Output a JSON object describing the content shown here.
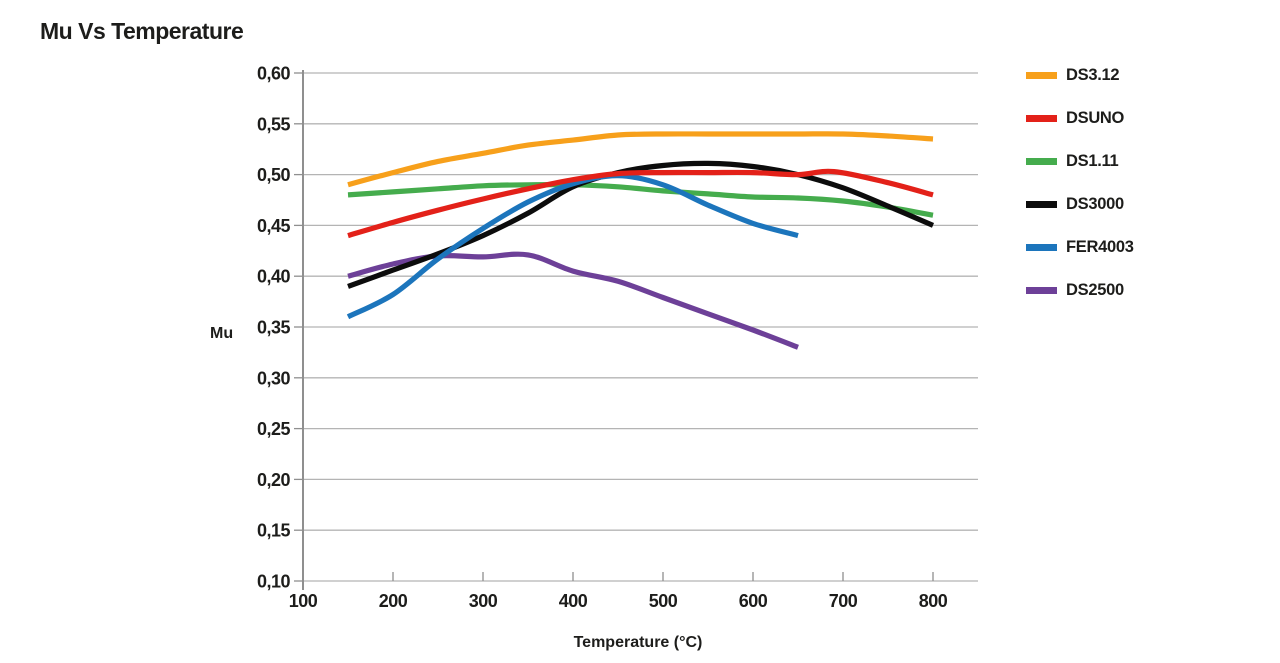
{
  "title": "Mu Vs Temperature",
  "colors": {
    "text": "#1d1d1b",
    "grid": "#b4b4b4",
    "axis": "#8f8f8f",
    "background": "#ffffff"
  },
  "chart_data": {
    "type": "line",
    "title": "Mu Vs Temperature",
    "xlabel": "Temperature (°C)",
    "ylabel": "Mu",
    "xlim": [
      100,
      850
    ],
    "ylim": [
      0.1,
      0.6
    ],
    "grid": "horizontal",
    "legend_position": "right",
    "decimal_separator": ",",
    "x_ticks": [
      100,
      200,
      300,
      400,
      500,
      600,
      700,
      800
    ],
    "x_tick_labels": [
      "100",
      "200",
      "300",
      "400",
      "500",
      "600",
      "700",
      "800"
    ],
    "y_ticks": [
      0.6,
      0.55,
      0.5,
      0.45,
      0.4,
      0.35,
      0.3,
      0.25,
      0.2,
      0.15,
      0.1
    ],
    "y_tick_labels": [
      "0,60",
      "0,55",
      "0,50",
      "0,45",
      "0,40",
      "0,35",
      "0,30",
      "0,25",
      "0,20",
      "0,15",
      "0,10"
    ],
    "series": [
      {
        "name": "DS3.12",
        "color": "#F7A01B",
        "points": [
          [
            150,
            0.49
          ],
          [
            200,
            0.502
          ],
          [
            250,
            0.513
          ],
          [
            300,
            0.521
          ],
          [
            350,
            0.529
          ],
          [
            400,
            0.534
          ],
          [
            450,
            0.539
          ],
          [
            500,
            0.54
          ],
          [
            550,
            0.54
          ],
          [
            600,
            0.54
          ],
          [
            650,
            0.54
          ],
          [
            700,
            0.54
          ],
          [
            750,
            0.538
          ],
          [
            800,
            0.535
          ]
        ]
      },
      {
        "name": "DSUNO",
        "color": "#E32119",
        "points": [
          [
            150,
            0.44
          ],
          [
            200,
            0.453
          ],
          [
            250,
            0.465
          ],
          [
            300,
            0.476
          ],
          [
            350,
            0.486
          ],
          [
            400,
            0.495
          ],
          [
            450,
            0.501
          ],
          [
            500,
            0.502
          ],
          [
            550,
            0.502
          ],
          [
            600,
            0.502
          ],
          [
            650,
            0.5
          ],
          [
            690,
            0.503
          ],
          [
            750,
            0.492
          ],
          [
            800,
            0.48
          ]
        ]
      },
      {
        "name": "DS1.11",
        "color": "#45AC4D",
        "points": [
          [
            150,
            0.48
          ],
          [
            200,
            0.483
          ],
          [
            250,
            0.486
          ],
          [
            300,
            0.489
          ],
          [
            350,
            0.49
          ],
          [
            400,
            0.49
          ],
          [
            450,
            0.488
          ],
          [
            500,
            0.484
          ],
          [
            550,
            0.481
          ],
          [
            600,
            0.478
          ],
          [
            650,
            0.477
          ],
          [
            700,
            0.474
          ],
          [
            750,
            0.468
          ],
          [
            800,
            0.46
          ]
        ]
      },
      {
        "name": "DS3000",
        "color": "#0C0C0C",
        "points": [
          [
            150,
            0.39
          ],
          [
            200,
            0.406
          ],
          [
            250,
            0.422
          ],
          [
            300,
            0.44
          ],
          [
            350,
            0.462
          ],
          [
            400,
            0.488
          ],
          [
            450,
            0.502
          ],
          [
            500,
            0.509
          ],
          [
            550,
            0.511
          ],
          [
            600,
            0.508
          ],
          [
            650,
            0.5
          ],
          [
            700,
            0.487
          ],
          [
            750,
            0.469
          ],
          [
            800,
            0.45
          ]
        ]
      },
      {
        "name": "FER4003",
        "color": "#1C75BC",
        "points": [
          [
            150,
            0.36
          ],
          [
            200,
            0.382
          ],
          [
            250,
            0.417
          ],
          [
            300,
            0.447
          ],
          [
            350,
            0.473
          ],
          [
            400,
            0.491
          ],
          [
            450,
            0.499
          ],
          [
            500,
            0.49
          ],
          [
            550,
            0.47
          ],
          [
            600,
            0.452
          ],
          [
            650,
            0.44
          ]
        ]
      },
      {
        "name": "DS2500",
        "color": "#6D4098",
        "points": [
          [
            150,
            0.4
          ],
          [
            200,
            0.412
          ],
          [
            250,
            0.42
          ],
          [
            300,
            0.419
          ],
          [
            350,
            0.421
          ],
          [
            400,
            0.405
          ],
          [
            450,
            0.395
          ],
          [
            500,
            0.379
          ],
          [
            550,
            0.363
          ],
          [
            600,
            0.347
          ],
          [
            650,
            0.33
          ]
        ]
      }
    ],
    "render_order": [
      "DS3.12",
      "DS1.11",
      "DS2500",
      "DS3000",
      "FER4003",
      "DSUNO"
    ]
  }
}
